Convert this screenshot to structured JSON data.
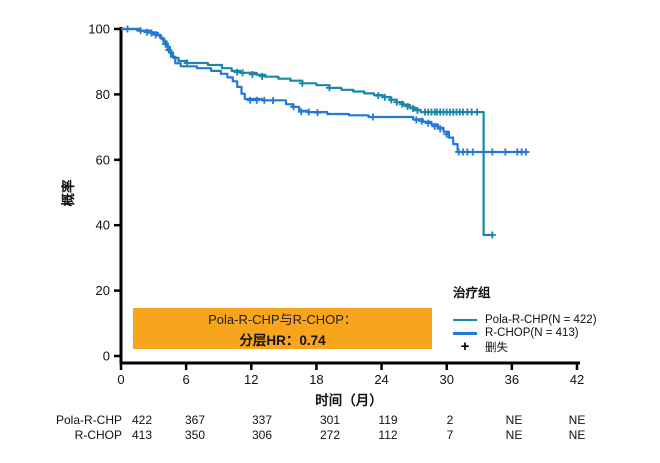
{
  "chart_data": {
    "type": "line",
    "subtype": "kaplan-meier-step",
    "title": "",
    "xlabel": "时间（月）",
    "ylabel": "概率",
    "xlim": [
      0,
      42
    ],
    "ylim": [
      0,
      100
    ],
    "xticks": [
      0,
      6,
      12,
      18,
      24,
      30,
      36,
      42
    ],
    "yticks": [
      0,
      20,
      40,
      60,
      80,
      100
    ],
    "grid": false,
    "legend": {
      "position": "lower-right",
      "title": "治疗组",
      "censor_symbol": "+",
      "censor_label": "删失"
    },
    "annotation": {
      "line1": "Pola-R-CHP与R-CHOP：",
      "line2": "分层HR：0.74",
      "bg": "#F7A51C"
    },
    "series": [
      {
        "name": "Pola-R-CHP(N = 422)",
        "color": "#1A87A8",
        "steps": [
          [
            0,
            100
          ],
          [
            1.5,
            99.5
          ],
          [
            2.6,
            99
          ],
          [
            3.2,
            98.2
          ],
          [
            3.6,
            97.3
          ],
          [
            3.9,
            96.2
          ],
          [
            4.2,
            94.6
          ],
          [
            4.5,
            92.8
          ],
          [
            4.8,
            91.2
          ],
          [
            5.3,
            90.2
          ],
          [
            6.0,
            89.6
          ],
          [
            8.0,
            89.0
          ],
          [
            9.3,
            88.0
          ],
          [
            10.2,
            87.2
          ],
          [
            11.0,
            86.6
          ],
          [
            12.5,
            86.0
          ],
          [
            13.3,
            85.4
          ],
          [
            14.5,
            84.8
          ],
          [
            15.6,
            84.2
          ],
          [
            16.7,
            83.4
          ],
          [
            18.0,
            82.8
          ],
          [
            19.2,
            82.0
          ],
          [
            20.3,
            81.4
          ],
          [
            21.4,
            80.9
          ],
          [
            22.4,
            80.3
          ],
          [
            23.3,
            79.8
          ],
          [
            24.1,
            79.2
          ],
          [
            24.8,
            78.4
          ],
          [
            25.4,
            77.6
          ],
          [
            26.0,
            76.8
          ],
          [
            26.6,
            76.0
          ],
          [
            27.1,
            75.3
          ],
          [
            27.6,
            74.6
          ],
          [
            33.4,
            74.6
          ],
          [
            33.4,
            37
          ],
          [
            34.3,
            37
          ]
        ],
        "censors": [
          [
            0.6,
            100
          ],
          [
            1.8,
            99.5
          ],
          [
            2.4,
            99
          ],
          [
            4.1,
            95.4
          ],
          [
            4.4,
            93.6
          ],
          [
            6.1,
            89.6
          ],
          [
            10.7,
            86.8
          ],
          [
            11.2,
            86.6
          ],
          [
            12.1,
            86.1
          ],
          [
            13.0,
            85.5
          ],
          [
            16.7,
            83.4
          ],
          [
            19.2,
            82.0
          ],
          [
            23.7,
            79.6
          ],
          [
            24.3,
            79.1
          ],
          [
            24.9,
            78.3
          ],
          [
            25.4,
            77.6
          ],
          [
            25.9,
            77.0
          ],
          [
            26.4,
            76.3
          ],
          [
            26.9,
            75.7
          ],
          [
            27.3,
            75.1
          ],
          [
            28.0,
            74.6
          ],
          [
            28.3,
            74.6
          ],
          [
            28.6,
            74.6
          ],
          [
            28.9,
            74.6
          ],
          [
            29.1,
            74.6
          ],
          [
            29.4,
            74.6
          ],
          [
            29.7,
            74.6
          ],
          [
            30.0,
            74.6
          ],
          [
            30.3,
            74.6
          ],
          [
            30.6,
            74.6
          ],
          [
            30.9,
            74.6
          ],
          [
            31.2,
            74.6
          ],
          [
            31.5,
            74.6
          ],
          [
            31.9,
            74.6
          ],
          [
            32.3,
            74.6
          ],
          [
            32.8,
            74.6
          ],
          [
            34.2,
            37
          ]
        ]
      },
      {
        "name": "R-CHOP(N = 413)",
        "color": "#2479D8",
        "steps": [
          [
            0,
            100
          ],
          [
            1.8,
            99.4
          ],
          [
            2.8,
            98.8
          ],
          [
            3.4,
            98.0
          ],
          [
            3.7,
            97.0
          ],
          [
            4.0,
            95.5
          ],
          [
            4.3,
            93.5
          ],
          [
            4.6,
            91.5
          ],
          [
            5.0,
            89.5
          ],
          [
            5.5,
            88.6
          ],
          [
            7.0,
            88.0
          ],
          [
            8.3,
            87.2
          ],
          [
            9.2,
            86.3
          ],
          [
            9.8,
            85.2
          ],
          [
            10.3,
            84.0
          ],
          [
            10.7,
            82.3
          ],
          [
            11.1,
            80.2
          ],
          [
            11.4,
            78.6
          ],
          [
            13.0,
            78.2
          ],
          [
            15.2,
            77.0
          ],
          [
            15.8,
            76.2
          ],
          [
            16.4,
            75.0
          ],
          [
            17.2,
            74.6
          ],
          [
            19.0,
            74.0
          ],
          [
            21.0,
            73.6
          ],
          [
            22.8,
            73.1
          ],
          [
            26.9,
            72.4
          ],
          [
            27.8,
            71.6
          ],
          [
            28.6,
            70.8
          ],
          [
            29.2,
            69.8
          ],
          [
            29.7,
            68.6
          ],
          [
            30.2,
            66.8
          ],
          [
            30.6,
            64.8
          ],
          [
            31.0,
            62.4
          ],
          [
            37.5,
            62.4
          ]
        ],
        "censors": [
          [
            2.8,
            98.8
          ],
          [
            3.2,
            98.2
          ],
          [
            11.9,
            78.2
          ],
          [
            12.5,
            78.2
          ],
          [
            13.2,
            78.2
          ],
          [
            14.0,
            78.1
          ],
          [
            15.9,
            76.2
          ],
          [
            16.6,
            74.7
          ],
          [
            17.3,
            74.6
          ],
          [
            18.1,
            74.4
          ],
          [
            23.2,
            73.1
          ],
          [
            27.2,
            72.2
          ],
          [
            27.7,
            71.8
          ],
          [
            28.3,
            71.2
          ],
          [
            28.9,
            70.2
          ],
          [
            29.4,
            69.5
          ],
          [
            30.0,
            67.8
          ],
          [
            31.1,
            62.4
          ],
          [
            31.5,
            62.4
          ],
          [
            31.9,
            62.4
          ],
          [
            32.4,
            62.4
          ],
          [
            33.4,
            62.4
          ],
          [
            34.2,
            62.4
          ],
          [
            35.4,
            62.4
          ],
          [
            36.5,
            62.4
          ],
          [
            36.9,
            62.4
          ],
          [
            37.3,
            62.4
          ]
        ]
      }
    ],
    "risk_table": {
      "rows": [
        {
          "label": "Pola-R-CHP",
          "values": [
            "422",
            "367",
            "337",
            "301",
            "119",
            "2",
            "NE",
            "NE"
          ]
        },
        {
          "label": "R-CHOP",
          "values": [
            "413",
            "350",
            "306",
            "272",
            "112",
            "7",
            "NE",
            "NE"
          ]
        }
      ]
    }
  }
}
